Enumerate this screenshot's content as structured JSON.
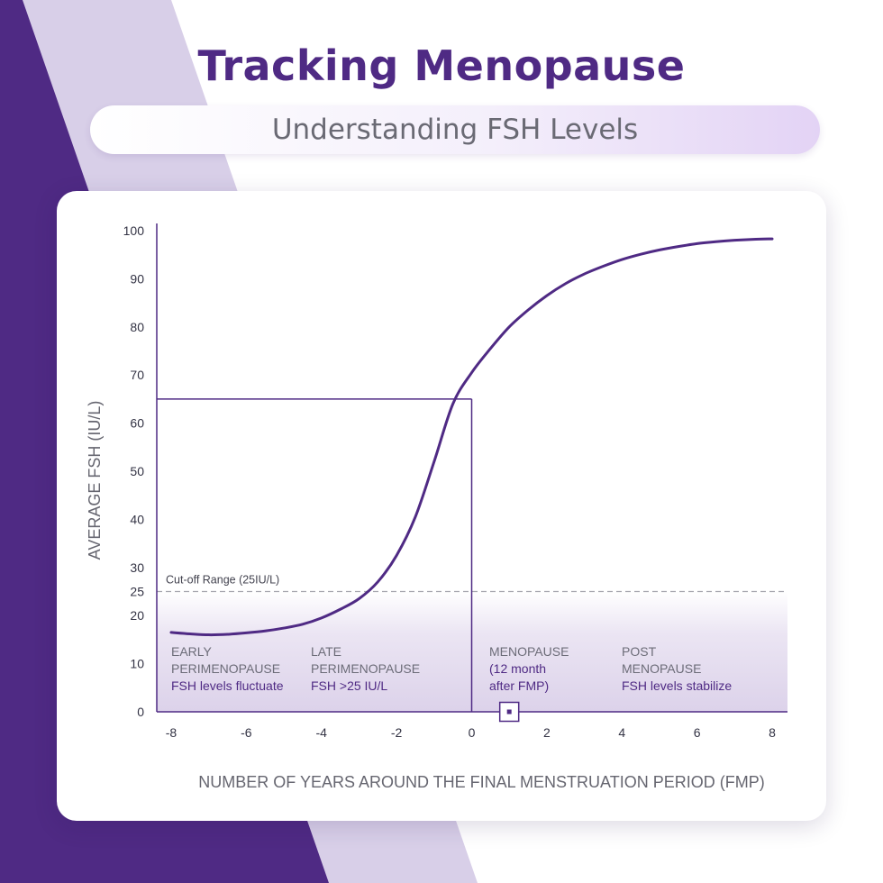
{
  "header": {
    "title": "Tracking Menopause",
    "subtitle": "Understanding FSH Levels"
  },
  "colors": {
    "brand_purple": "#4f2a84",
    "light_lilac": "#d8cfe8",
    "band_fill": "#ebe5f3"
  },
  "chart_data": {
    "type": "line",
    "xlabel": "NUMBER OF YEARS AROUND THE FINAL MENSTRUATION PERIOD (FMP)",
    "ylabel": "AVERAGE FSH (IU/L)",
    "xlim": [
      -8,
      8
    ],
    "ylim": [
      0,
      100
    ],
    "x_ticks": [
      -8,
      -6,
      -4,
      -2,
      0,
      2,
      4,
      6,
      8
    ],
    "y_ticks": [
      0,
      10,
      20,
      25,
      30,
      40,
      50,
      60,
      70,
      80,
      90,
      100
    ],
    "grid": false,
    "series": [
      {
        "x": [
          -8,
          -7.5,
          -7,
          -6.5,
          -6,
          -5.5,
          -5,
          -4.5,
          -4,
          -3.5,
          -3,
          -2.5,
          -2,
          -1.5,
          -1,
          -0.5,
          0,
          0.5,
          1,
          1.5,
          2,
          2.5,
          3,
          3.5,
          4,
          4.5,
          5,
          5.5,
          6,
          6.5,
          7,
          7.5,
          8
        ],
        "y": [
          16.5,
          16.2,
          16,
          16.1,
          16.4,
          16.8,
          17.4,
          18.2,
          19.5,
          21.3,
          23.5,
          27,
          32.5,
          40.5,
          52,
          64,
          70.5,
          75.5,
          80,
          83.5,
          86.5,
          89,
          91,
          92.6,
          94,
          95.1,
          96,
          96.7,
          97.3,
          97.7,
          98,
          98.2,
          98.3
        ]
      }
    ],
    "cutoff": {
      "y": 25,
      "label": "Cut-off Range (25IU/L)"
    },
    "menopause_marker": {
      "x": 0,
      "y": 65
    },
    "phases": [
      {
        "lines": [
          "EARLY",
          "PERIMENOPAUSE"
        ],
        "note": "FSH levels fluctuate"
      },
      {
        "lines": [
          "LATE",
          "PERIMENOPAUSE"
        ],
        "note": "FSH >25 IU/L"
      },
      {
        "lines": [
          "MENOPAUSE",
          "(12 month",
          "after FMP)"
        ],
        "note": ""
      },
      {
        "lines": [
          "POST",
          "MENOPAUSE"
        ],
        "note": "FSH levels stabilize"
      }
    ],
    "x_marker_at": 1
  }
}
